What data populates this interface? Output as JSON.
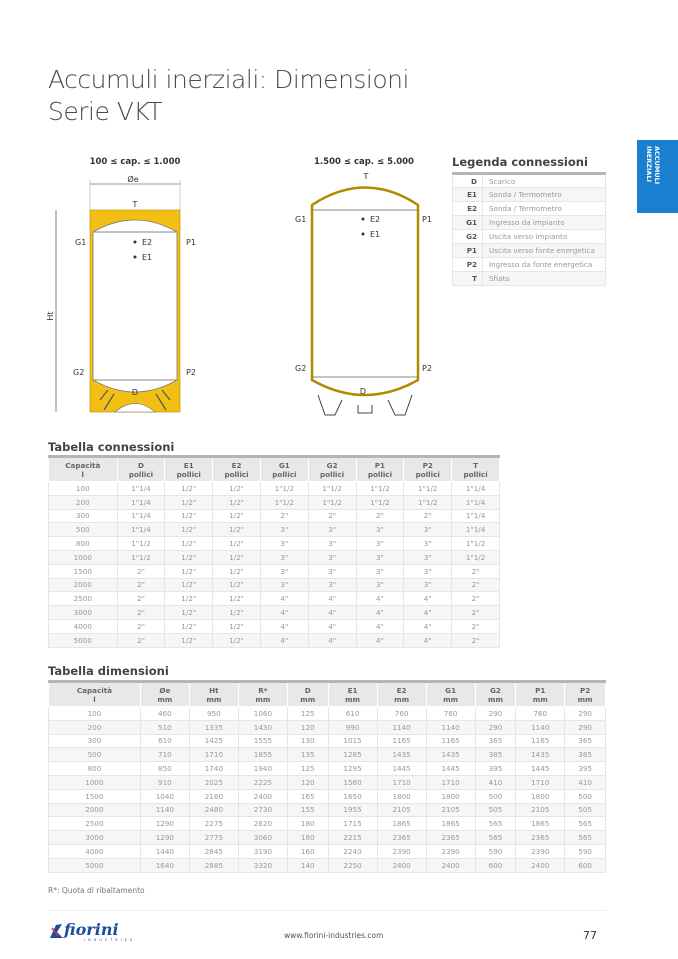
{
  "title": {
    "line1": "Accumuli inerziali: Dimensioni",
    "line2": "Serie VKT"
  },
  "side_tab": "ACCUMULI INERZIALI",
  "diagrams": {
    "small": {
      "caption": "100 ≤ cap. ≤ 1.000",
      "diameter": "Øe",
      "height": "Ht",
      "labels": {
        "T": "T",
        "G1": "G1",
        "P1": "P1",
        "E2": "E2",
        "E1": "E1",
        "G2": "G2",
        "P2": "P2",
        "D": "D"
      }
    },
    "large": {
      "caption": "1.500 ≤ cap. ≤ 5.000",
      "labels": {
        "T": "T",
        "G1": "G1",
        "P1": "P1",
        "E2": "E2",
        "E1": "E1",
        "G2": "G2",
        "P2": "P2",
        "D": "D"
      }
    },
    "insulation_color": "#f2c014"
  },
  "legend": {
    "title": "Legenda connessioni",
    "rows": [
      [
        "D",
        "Scarico"
      ],
      [
        "E1",
        "Sonda / Termometro"
      ],
      [
        "E2",
        "Sonda / Termometro"
      ],
      [
        "G1",
        "Ingresso da impianto"
      ],
      [
        "G2",
        "Uscita verso impianto"
      ],
      [
        "P1",
        "Uscita verso fonte energetica"
      ],
      [
        "P2",
        "Ingresso da fonte energetica"
      ],
      [
        "T",
        "Sfiato"
      ]
    ]
  },
  "connections": {
    "title": "Tabella connessioni",
    "headers": [
      [
        "Capacità",
        "l"
      ],
      [
        "D",
        "pollici"
      ],
      [
        "E1",
        "pollici"
      ],
      [
        "E2",
        "pollici"
      ],
      [
        "G1",
        "pollici"
      ],
      [
        "G2",
        "pollici"
      ],
      [
        "P1",
        "pollici"
      ],
      [
        "P2",
        "pollici"
      ],
      [
        "T",
        "pollici"
      ]
    ],
    "rows": [
      [
        "100",
        "1\"1/4",
        "1/2\"",
        "1/2\"",
        "1\"1/2",
        "1\"1/2",
        "1\"1/2",
        "1\"1/2",
        "1\"1/4"
      ],
      [
        "200",
        "1\"1/4",
        "1/2\"",
        "1/2\"",
        "1\"1/2",
        "1\"1/2",
        "1\"1/2",
        "1\"1/2",
        "1\"1/4"
      ],
      [
        "300",
        "1\"1/4",
        "1/2\"",
        "1/2\"",
        "2\"",
        "2\"",
        "2\"",
        "2\"",
        "1\"1/4"
      ],
      [
        "500",
        "1\"1/4",
        "1/2\"",
        "1/2\"",
        "3\"",
        "3\"",
        "3\"",
        "3\"",
        "1\"1/4"
      ],
      [
        "800",
        "1\"1/2",
        "1/2\"",
        "1/2\"",
        "3\"",
        "3\"",
        "3\"",
        "3\"",
        "1\"1/2"
      ],
      [
        "1000",
        "1\"1/2",
        "1/2\"",
        "1/2\"",
        "3\"",
        "3\"",
        "3\"",
        "3\"",
        "1\"1/2"
      ],
      [
        "1500",
        "2\"",
        "1/2\"",
        "1/2\"",
        "3\"",
        "3\"",
        "3\"",
        "3\"",
        "2\""
      ],
      [
        "2000",
        "2\"",
        "1/2\"",
        "1/2\"",
        "3\"",
        "3\"",
        "3\"",
        "3\"",
        "2\""
      ],
      [
        "2500",
        "2\"",
        "1/2\"",
        "1/2\"",
        "4\"",
        "4\"",
        "4\"",
        "4\"",
        "2\""
      ],
      [
        "3000",
        "2\"",
        "1/2\"",
        "1/2\"",
        "4\"",
        "4\"",
        "4\"",
        "4\"",
        "2\""
      ],
      [
        "4000",
        "2\"",
        "1/2\"",
        "1/2\"",
        "4\"",
        "4\"",
        "4\"",
        "4\"",
        "2\""
      ],
      [
        "5000",
        "2\"",
        "1/2\"",
        "1/2\"",
        "4\"",
        "4\"",
        "4\"",
        "4\"",
        "2\""
      ]
    ]
  },
  "dimensions": {
    "title": "Tabella dimensioni",
    "headers": [
      [
        "Capacità",
        "l"
      ],
      [
        "Øe",
        "mm"
      ],
      [
        "Ht",
        "mm"
      ],
      [
        "R*",
        "mm"
      ],
      [
        "D",
        "mm"
      ],
      [
        "E1",
        "mm"
      ],
      [
        "E2",
        "mm"
      ],
      [
        "G1",
        "mm"
      ],
      [
        "G2",
        "mm"
      ],
      [
        "P1",
        "mm"
      ],
      [
        "P2",
        "mm"
      ]
    ],
    "rows": [
      [
        "100",
        "460",
        "950",
        "1060",
        "125",
        "610",
        "760",
        "760",
        "290",
        "760",
        "290"
      ],
      [
        "200",
        "510",
        "1335",
        "1430",
        "120",
        "990",
        "1140",
        "1140",
        "290",
        "1140",
        "290"
      ],
      [
        "300",
        "610",
        "1425",
        "1555",
        "130",
        "1015",
        "1165",
        "1165",
        "365",
        "1165",
        "365"
      ],
      [
        "500",
        "710",
        "1710",
        "1855",
        "135",
        "1285",
        "1435",
        "1435",
        "385",
        "1435",
        "385"
      ],
      [
        "800",
        "850",
        "1740",
        "1940",
        "125",
        "1295",
        "1445",
        "1445",
        "395",
        "1445",
        "395"
      ],
      [
        "1000",
        "910",
        "2025",
        "2225",
        "120",
        "1560",
        "1710",
        "1710",
        "410",
        "1710",
        "410"
      ],
      [
        "1500",
        "1040",
        "2160",
        "2400",
        "165",
        "1650",
        "1800",
        "1800",
        "500",
        "1800",
        "500"
      ],
      [
        "2000",
        "1140",
        "2480",
        "2730",
        "155",
        "1955",
        "2105",
        "2105",
        "505",
        "2105",
        "505"
      ],
      [
        "2500",
        "1290",
        "2275",
        "2620",
        "180",
        "1715",
        "1865",
        "1865",
        "565",
        "1865",
        "565"
      ],
      [
        "3000",
        "1290",
        "2775",
        "3060",
        "180",
        "2215",
        "2365",
        "2365",
        "565",
        "2365",
        "565"
      ],
      [
        "4000",
        "1440",
        "2845",
        "3190",
        "160",
        "2240",
        "2390",
        "2390",
        "590",
        "2390",
        "590"
      ],
      [
        "5000",
        "1640",
        "2885",
        "3320",
        "140",
        "2250",
        "2400",
        "2400",
        "600",
        "2400",
        "600"
      ]
    ],
    "note": "R*: Quota di ribaltamento"
  },
  "footer": {
    "logo": "fiorini",
    "logo_sub": "INDUSTRIES",
    "url": "www.fiorini-industries.com",
    "page": "77"
  },
  "colors": {
    "accent": "#1b7fcf",
    "logo": "#1a4d9c"
  }
}
